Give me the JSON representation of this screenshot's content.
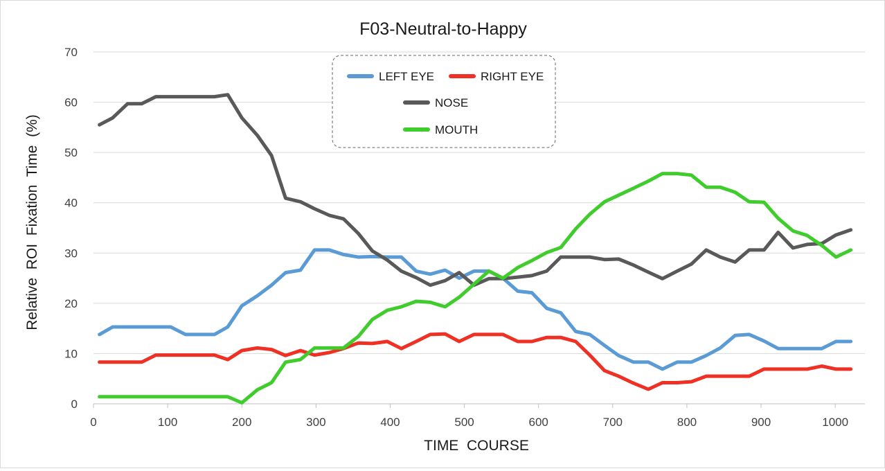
{
  "chart_data": {
    "type": "line",
    "title": "F03-Neutral-to-Happy",
    "xlabel": "TIME  COURSE",
    "ylabel": "Relative  ROI  Fixation  Time  (%)",
    "xlim": [
      0,
      1040
    ],
    "ylim": [
      0,
      70
    ],
    "xticks": [
      0,
      100,
      200,
      300,
      400,
      500,
      600,
      700,
      800,
      900,
      1000
    ],
    "yticks": [
      0,
      10,
      20,
      30,
      40,
      50,
      60,
      70
    ],
    "grid": "horizontal",
    "legend_position": "top-center",
    "x": [
      8,
      26,
      46,
      65,
      84,
      104,
      124,
      143,
      163,
      181,
      200,
      221,
      240,
      259,
      279,
      298,
      318,
      337,
      357,
      376,
      396,
      415,
      435,
      454,
      474,
      493,
      513,
      533,
      552,
      572,
      591,
      611,
      630,
      650,
      669,
      689,
      708,
      728,
      748,
      767,
      787,
      806,
      826,
      845,
      865,
      884,
      904,
      923,
      943,
      962,
      982,
      1001,
      1021
    ],
    "series": [
      {
        "name": "LEFT EYE",
        "color": "#5b9bd5",
        "values": [
          13.8,
          15.3,
          15.3,
          15.3,
          15.3,
          15.3,
          13.8,
          13.8,
          13.8,
          15.3,
          19.5,
          21.5,
          23.6,
          26.1,
          26.6,
          30.6,
          30.6,
          29.7,
          29.2,
          29.3,
          29.2,
          29.2,
          26.4,
          25.8,
          26.6,
          25.0,
          26.4,
          26.4,
          25.0,
          22.4,
          22.1,
          19.0,
          18.1,
          14.4,
          13.8,
          11.6,
          9.6,
          8.3,
          8.3,
          6.9,
          8.3,
          8.3,
          9.6,
          11.1,
          13.6,
          13.8,
          12.5,
          11.0,
          11.0,
          11.0,
          11.0,
          12.4,
          12.4
        ]
      },
      {
        "name": "RIGHT EYE",
        "color": "#ee3124",
        "values": [
          8.3,
          8.3,
          8.3,
          8.3,
          9.7,
          9.7,
          9.7,
          9.7,
          9.7,
          8.8,
          10.6,
          11.1,
          10.8,
          9.6,
          10.6,
          9.7,
          10.2,
          11.0,
          12.1,
          12.0,
          12.4,
          11.0,
          12.4,
          13.8,
          13.9,
          12.4,
          13.8,
          13.8,
          13.8,
          12.4,
          12.4,
          13.2,
          13.2,
          12.4,
          9.7,
          6.6,
          5.5,
          4.1,
          2.9,
          4.2,
          4.2,
          4.4,
          5.5,
          5.5,
          5.5,
          5.5,
          6.9,
          6.9,
          6.9,
          6.9,
          7.5,
          6.9,
          6.9
        ]
      },
      {
        "name": "NOSE",
        "color": "#595959",
        "values": [
          55.5,
          56.9,
          59.7,
          59.7,
          61.1,
          61.1,
          61.1,
          61.1,
          61.1,
          61.5,
          56.9,
          53.4,
          49.4,
          40.9,
          40.2,
          38.8,
          37.5,
          36.8,
          33.9,
          30.4,
          28.6,
          26.4,
          25.1,
          23.6,
          24.5,
          26.1,
          23.6,
          24.9,
          24.9,
          25.2,
          25.5,
          26.4,
          29.2,
          29.2,
          29.2,
          28.7,
          28.8,
          27.6,
          26.2,
          24.9,
          26.4,
          27.8,
          30.6,
          29.2,
          28.2,
          30.6,
          30.6,
          34.1,
          31.0,
          31.7,
          31.9,
          33.6,
          34.6
        ]
      },
      {
        "name": "MOUTH",
        "color": "#3fcc2c",
        "values": [
          1.4,
          1.4,
          1.4,
          1.4,
          1.4,
          1.4,
          1.4,
          1.4,
          1.4,
          1.4,
          0.2,
          2.8,
          4.2,
          8.3,
          8.8,
          11.1,
          11.1,
          11.1,
          13.4,
          16.8,
          18.6,
          19.3,
          20.4,
          20.2,
          19.3,
          21.2,
          23.8,
          26.4,
          25.0,
          27.1,
          28.5,
          30.1,
          31.1,
          34.8,
          37.7,
          40.2,
          41.5,
          42.9,
          44.3,
          45.8,
          45.8,
          45.5,
          43.1,
          43.1,
          42.1,
          40.2,
          40.1,
          36.9,
          34.4,
          33.5,
          31.5,
          29.2,
          30.6
        ]
      }
    ]
  }
}
